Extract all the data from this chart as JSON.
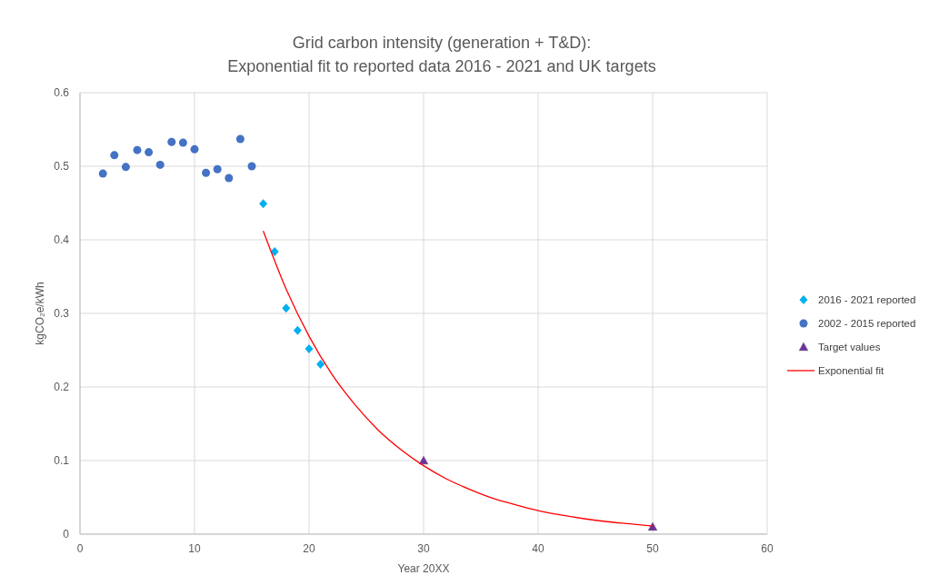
{
  "chart_data": {
    "type": "scatter",
    "title": "Grid carbon intensity (generation + T&D):\nExponential fit to reported data 2016 - 2021 and UK targets",
    "xlabel": "Year 20XX",
    "ylabel": "kgCO₂e/kWh",
    "xlim": [
      0,
      60
    ],
    "xticks": [
      0,
      10,
      20,
      30,
      40,
      50,
      60
    ],
    "ylim": [
      0,
      0.6
    ],
    "yticks": [
      0,
      0.1,
      0.2,
      0.3,
      0.4,
      0.5,
      0.6
    ],
    "grid": true,
    "legend": "right",
    "series": [
      {
        "name": "2016 - 2021 reported",
        "marker": "diamond",
        "color": "#00b0f0",
        "x": [
          16,
          17,
          18,
          19,
          20,
          21
        ],
        "values": [
          0.449,
          0.384,
          0.307,
          0.277,
          0.252,
          0.231
        ]
      },
      {
        "name": "2002 - 2015 reported",
        "marker": "circle",
        "color": "#4472c4",
        "x": [
          2,
          3,
          4,
          5,
          6,
          7,
          8,
          9,
          10,
          11,
          12,
          13,
          14,
          15
        ],
        "values": [
          0.49,
          0.515,
          0.499,
          0.522,
          0.519,
          0.502,
          0.533,
          0.532,
          0.523,
          0.491,
          0.496,
          0.484,
          0.537,
          0.5
        ]
      },
      {
        "name": "Target values",
        "marker": "triangle",
        "color": "#7030a0",
        "x": [
          30,
          50
        ],
        "values": [
          0.1,
          0.01
        ]
      },
      {
        "name": "Exponential fit",
        "type": "line",
        "marker": "none",
        "line_style": "solid",
        "color": "#ff0000",
        "x": [
          16,
          18,
          20,
          22,
          24,
          26,
          28,
          30,
          32,
          34,
          36,
          38,
          40,
          42,
          44,
          46,
          48,
          50
        ],
        "values": [
          0.412,
          0.333,
          0.269,
          0.217,
          0.176,
          0.142,
          0.115,
          0.093,
          0.075,
          0.061,
          0.049,
          0.04,
          0.032,
          0.026,
          0.021,
          0.017,
          0.014,
          0.011
        ]
      }
    ]
  }
}
